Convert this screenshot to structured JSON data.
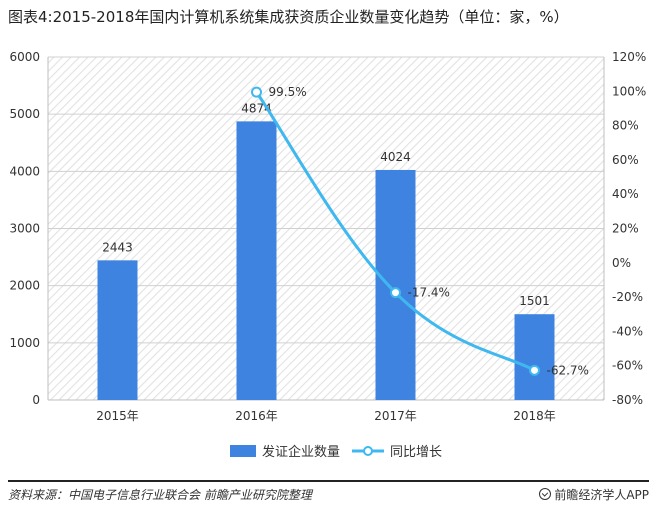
{
  "title": "图表4:2015-2018年国内计算机系统集成获资质企业数量变化趋势（单位：家，%）",
  "source": "资料来源：中国电子信息行业联合会  前瞻产业研究院整理",
  "brand": "前瞻经济学人APP",
  "chart_data": {
    "type": "bar",
    "categories": [
      "2015年",
      "2016年",
      "2017年",
      "2018年"
    ],
    "series": [
      {
        "name": "发证企业数量",
        "type": "bar",
        "axis": "left",
        "values": [
          2443,
          4874,
          4024,
          1501
        ],
        "labels": [
          "2443",
          "4874",
          "4024",
          "1501"
        ],
        "color": "#3f83e0"
      },
      {
        "name": "同比增长",
        "type": "line",
        "axis": "right",
        "values": [
          null,
          99.5,
          -17.4,
          -62.7
        ],
        "labels": [
          "",
          "99.5%",
          "-17.4%",
          "-62.7%"
        ],
        "color": "#3fb8f0"
      }
    ],
    "y_left": {
      "min": 0,
      "max": 6000,
      "step": 1000,
      "ticks": [
        "0",
        "1000",
        "2000",
        "3000",
        "4000",
        "5000",
        "6000"
      ]
    },
    "y_right": {
      "min": -80,
      "max": 120,
      "step": 20,
      "ticks": [
        "-80%",
        "-60%",
        "-40%",
        "-20%",
        "0%",
        "20%",
        "40%",
        "60%",
        "80%",
        "100%",
        "120%"
      ]
    },
    "legend_position": "bottom",
    "plot_background": "hatched"
  }
}
